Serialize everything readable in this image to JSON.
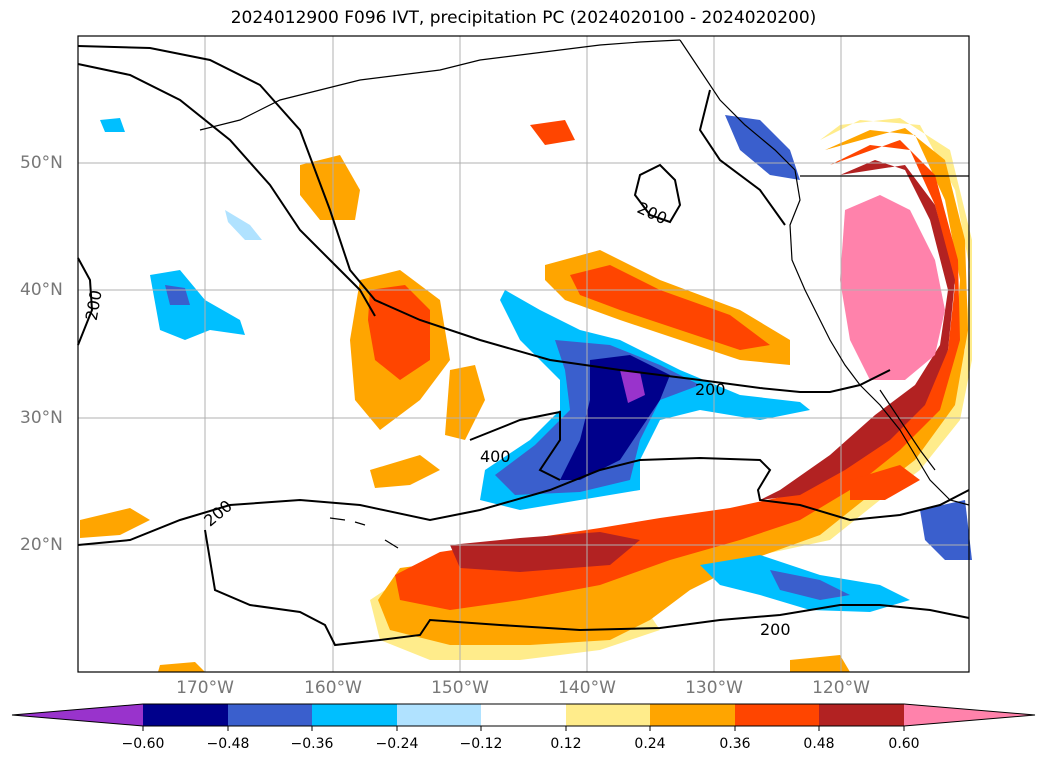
{
  "title": "2024012900 F096 IVT, precipitation PC (2024020100 - 2024020200)",
  "map": {
    "lon_labels": [
      "170°W",
      "160°W",
      "150°W",
      "140°W",
      "130°W",
      "120°W"
    ],
    "lat_labels": [
      "50°N",
      "40°N",
      "30°N",
      "20°N"
    ],
    "contour_labels": [
      "200",
      "200",
      "200",
      "200",
      "400",
      "200"
    ]
  },
  "colorbar": {
    "ticks": [
      "−0.60",
      "−0.48",
      "−0.36",
      "−0.24",
      "−0.12",
      "0.12",
      "0.24",
      "0.36",
      "0.48",
      "0.60"
    ],
    "colors": [
      "#9933cc",
      "#00008b",
      "#3a5fcd",
      "#00bfff",
      "#b0e2ff",
      "#ffffff",
      "#ffec8b",
      "#ffa500",
      "#ff4500",
      "#b22222",
      "#ff82ab"
    ]
  }
}
